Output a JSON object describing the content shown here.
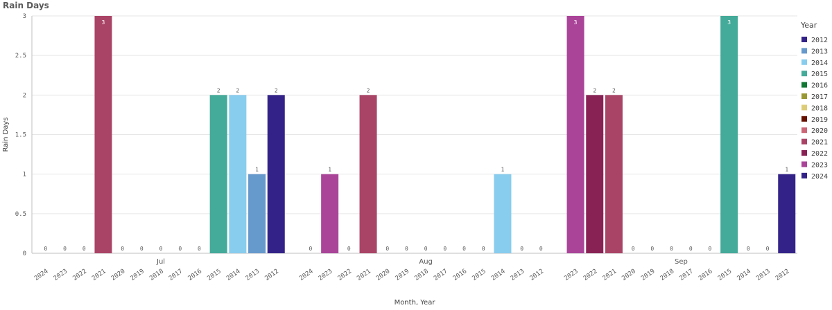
{
  "chart_data": {
    "type": "bar",
    "title": "Rain Days",
    "xlabel": "Month, Year",
    "ylabel": "Rain Days",
    "ylim": [
      0,
      3
    ],
    "yticks": [
      "0",
      "0.5",
      "1",
      "1.5",
      "2",
      "2.5",
      "3"
    ],
    "grid": true,
    "legend_title": "Year",
    "legend_position": "right",
    "series": [
      {
        "name": "2012",
        "color": "#332288"
      },
      {
        "name": "2013",
        "color": "#6699cc"
      },
      {
        "name": "2014",
        "color": "#88ccee"
      },
      {
        "name": "2015",
        "color": "#44aa99"
      },
      {
        "name": "2016",
        "color": "#117733"
      },
      {
        "name": "2017",
        "color": "#999933"
      },
      {
        "name": "2018",
        "color": "#ddcc77"
      },
      {
        "name": "2019",
        "color": "#661100"
      },
      {
        "name": "2020",
        "color": "#cc6677"
      },
      {
        "name": "2021",
        "color": "#aa4466"
      },
      {
        "name": "2022",
        "color": "#882255"
      },
      {
        "name": "2023",
        "color": "#aa4499"
      },
      {
        "name": "2024",
        "color": "#332288"
      }
    ],
    "groups": [
      {
        "label": "Jul",
        "bars": [
          {
            "year": "2024",
            "value": 0
          },
          {
            "year": "2023",
            "value": 0
          },
          {
            "year": "2022",
            "value": 0
          },
          {
            "year": "2021",
            "value": 3
          },
          {
            "year": "2020",
            "value": 0
          },
          {
            "year": "2019",
            "value": 0
          },
          {
            "year": "2018",
            "value": 0
          },
          {
            "year": "2017",
            "value": 0
          },
          {
            "year": "2016",
            "value": 0
          },
          {
            "year": "2015",
            "value": 2
          },
          {
            "year": "2014",
            "value": 2
          },
          {
            "year": "2013",
            "value": 1
          },
          {
            "year": "2012",
            "value": 2
          }
        ]
      },
      {
        "label": "Aug",
        "bars": [
          {
            "year": "2024",
            "value": 0
          },
          {
            "year": "2023",
            "value": 1
          },
          {
            "year": "2022",
            "value": 0
          },
          {
            "year": "2021",
            "value": 2
          },
          {
            "year": "2020",
            "value": 0
          },
          {
            "year": "2019",
            "value": 0
          },
          {
            "year": "2018",
            "value": 0
          },
          {
            "year": "2017",
            "value": 0
          },
          {
            "year": "2016",
            "value": 0
          },
          {
            "year": "2015",
            "value": 0
          },
          {
            "year": "2014",
            "value": 1
          },
          {
            "year": "2013",
            "value": 0
          },
          {
            "year": "2012",
            "value": 0
          }
        ]
      },
      {
        "label": "Sep",
        "bars": [
          {
            "year": "2023",
            "value": 3
          },
          {
            "year": "2022",
            "value": 2
          },
          {
            "year": "2021",
            "value": 2
          },
          {
            "year": "2020",
            "value": 0
          },
          {
            "year": "2019",
            "value": 0
          },
          {
            "year": "2018",
            "value": 0
          },
          {
            "year": "2017",
            "value": 0
          },
          {
            "year": "2016",
            "value": 0
          },
          {
            "year": "2015",
            "value": 3
          },
          {
            "year": "2014",
            "value": 0
          },
          {
            "year": "2013",
            "value": 0
          },
          {
            "year": "2012",
            "value": 1
          }
        ]
      }
    ]
  }
}
